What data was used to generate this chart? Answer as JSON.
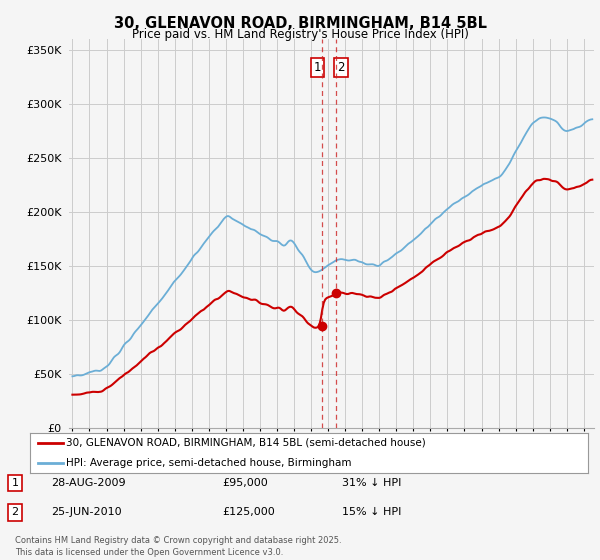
{
  "title": "30, GLENAVON ROAD, BIRMINGHAM, B14 5BL",
  "subtitle": "Price paid vs. HM Land Registry's House Price Index (HPI)",
  "legend_line1": "30, GLENAVON ROAD, BIRMINGHAM, B14 5BL (semi-detached house)",
  "legend_line2": "HPI: Average price, semi-detached house, Birmingham",
  "annotation1_label": "1",
  "annotation1_date": "28-AUG-2009",
  "annotation1_price": "£95,000",
  "annotation1_hpi": "31% ↓ HPI",
  "annotation2_label": "2",
  "annotation2_date": "25-JUN-2010",
  "annotation2_price": "£125,000",
  "annotation2_hpi": "15% ↓ HPI",
  "footer": "Contains HM Land Registry data © Crown copyright and database right 2025.\nThis data is licensed under the Open Government Licence v3.0.",
  "hpi_color": "#6baed6",
  "price_color": "#cc0000",
  "vline_color": "#cc2222",
  "box_color": "#cc0000",
  "ylim": [
    0,
    360000
  ],
  "yticks": [
    0,
    50000,
    100000,
    150000,
    200000,
    250000,
    300000,
    350000
  ],
  "background_color": "#f5f5f5",
  "grid_color": "#cccccc",
  "sale1_x": 2009.65,
  "sale2_x": 2010.48,
  "sale1_price": 95000,
  "sale2_price": 125000
}
